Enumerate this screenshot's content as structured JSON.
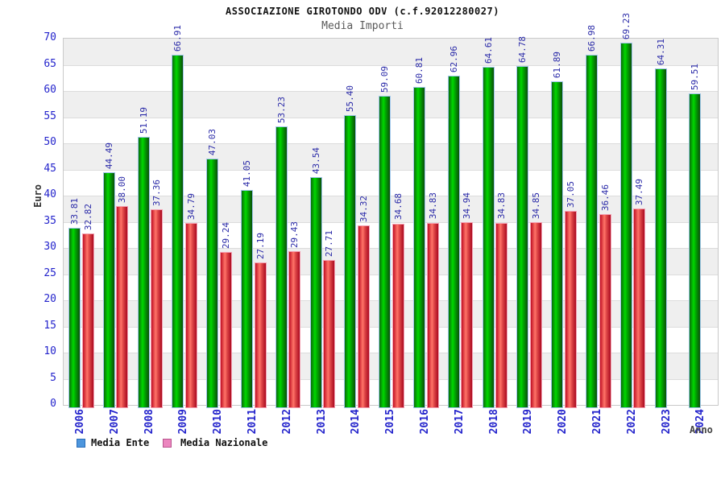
{
  "header": {
    "title": "ASSOCIAZIONE GIROTONDO ODV (c.f.92012280027)",
    "subtitle": "Media Importi"
  },
  "chart_data": {
    "type": "bar",
    "title": "ASSOCIAZIONE GIROTONDO ODV (c.f.92012280027)",
    "subtitle": "Media Importi",
    "xlabel": "Anno",
    "ylabel": "Euro",
    "ylim": [
      0,
      70
    ],
    "ytick_step": 5,
    "grid": "horizontal-bands",
    "legend_position": "bottom-left",
    "value_labels": "rotated-90-above-bars",
    "categories": [
      "2006",
      "2007",
      "2008",
      "2009",
      "2010",
      "2011",
      "2012",
      "2013",
      "2014",
      "2015",
      "2016",
      "2017",
      "2018",
      "2019",
      "2020",
      "2021",
      "2022",
      "2023",
      "2024"
    ],
    "series": [
      {
        "name": "Media Ente",
        "values": [
          33.81,
          44.49,
          51.19,
          66.91,
          47.03,
          41.05,
          53.23,
          43.54,
          55.4,
          59.09,
          60.81,
          62.96,
          64.61,
          64.78,
          61.89,
          66.98,
          69.23,
          64.31,
          59.51
        ]
      },
      {
        "name": "Media Nazionale",
        "values": [
          32.82,
          38.0,
          37.36,
          34.79,
          29.24,
          27.19,
          29.43,
          27.71,
          34.32,
          34.68,
          34.83,
          34.94,
          34.83,
          34.85,
          37.05,
          36.46,
          37.49,
          null,
          null
        ]
      }
    ]
  },
  "legend": {
    "items": [
      {
        "label": "Media Ente"
      },
      {
        "label": "Media Nazionale"
      }
    ]
  },
  "colors": {
    "ente_bar_fill": "#00cc00",
    "ente_bar_border": "#9fc6ea",
    "naz_bar_fill": "#ee3344",
    "naz_bar_border": "#f3a0b2",
    "ente_legend_swatch": "#4d96dd",
    "ente_legend_border": "#2a6db8",
    "naz_legend_swatch": "#ec86bf",
    "naz_legend_border": "#b8548e",
    "axis_text": "#2424cc",
    "value_text": "#2a2aa8",
    "band_gray": "#efefef"
  }
}
